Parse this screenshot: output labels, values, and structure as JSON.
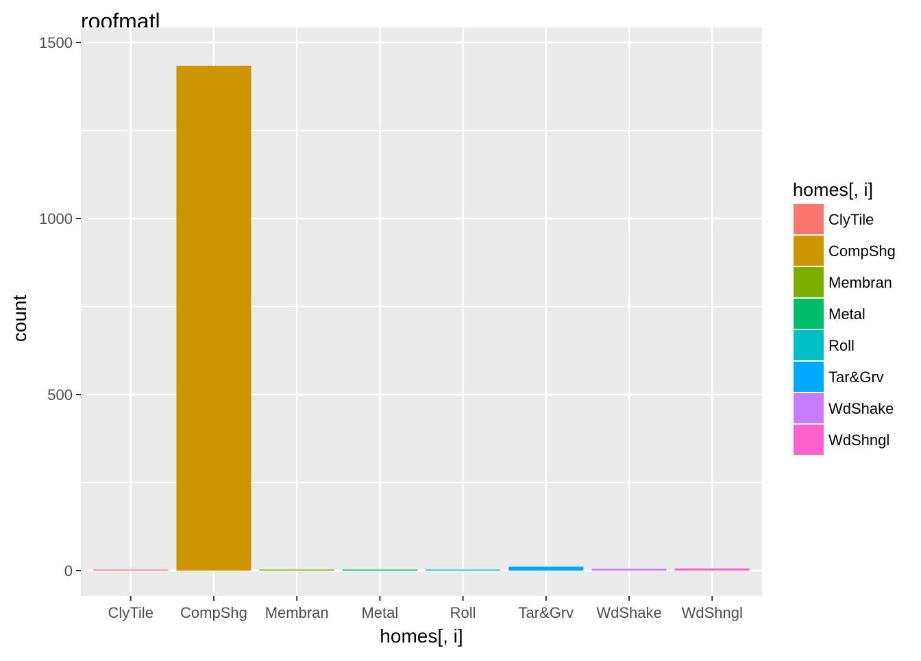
{
  "chart_data": {
    "type": "bar",
    "title": "roofmatl",
    "xlabel": "homes[, i]",
    "ylabel": "count",
    "categories": [
      "ClyTile",
      "CompShg",
      "Membran",
      "Metal",
      "Roll",
      "Tar&Grv",
      "WdShake",
      "WdShngl"
    ],
    "values": [
      1,
      1434,
      1,
      1,
      1,
      11,
      5,
      6
    ],
    "ylim": [
      -72,
      1500
    ],
    "yticks": [
      0,
      500,
      1000,
      1500
    ],
    "ytick_labels": [
      "0",
      "500",
      "1000",
      "1500"
    ],
    "grid": true,
    "legend": {
      "title": "homes[, i]",
      "placement": "right",
      "entries": [
        "ClyTile",
        "CompShg",
        "Membran",
        "Metal",
        "Roll",
        "Tar&Grv",
        "WdShake",
        "WdShngl"
      ]
    },
    "colors": [
      "#F8766D",
      "#CD9600",
      "#7CAE00",
      "#00BE67",
      "#00BFC4",
      "#00A9FF",
      "#C77CFF",
      "#FF61CC"
    ],
    "panel_background": "#EBEBEB",
    "grid_color": "#FFFFFF"
  }
}
